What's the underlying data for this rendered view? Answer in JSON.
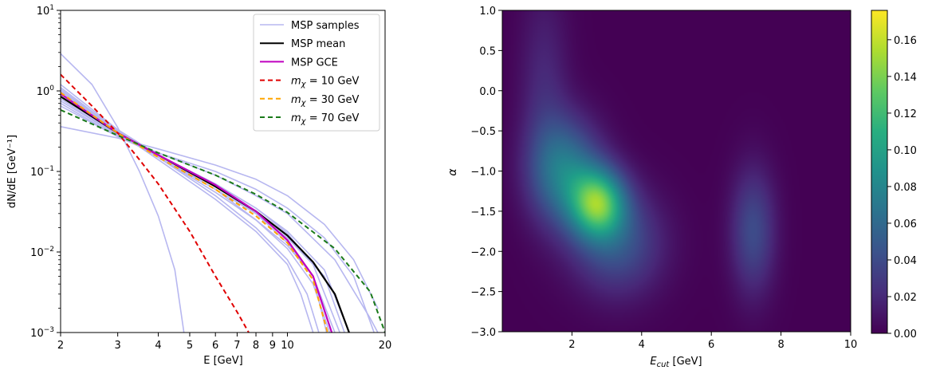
{
  "chart_data": [
    {
      "type": "line",
      "xlabel": "E [GeV]",
      "ylabel": "dN/dE [GeV⁻¹]",
      "xscale": "log",
      "yscale": "log",
      "xlim": [
        2,
        20
      ],
      "ylim": [
        0.001,
        10
      ],
      "xticks": [
        {
          "value": 2,
          "label": "2"
        },
        {
          "value": 3,
          "label": "3"
        },
        {
          "value": 4,
          "label": "4"
        },
        {
          "value": 5,
          "label": "5"
        },
        {
          "value": 6,
          "label": "6"
        },
        {
          "value": 7,
          "label": "7"
        },
        {
          "value": 8,
          "label": "8"
        },
        {
          "value": 9,
          "label": "9"
        },
        {
          "value": 10,
          "label": "10"
        },
        {
          "value": 20,
          "label": "20"
        }
      ],
      "yticks": [
        {
          "value": 0.001,
          "base": "10",
          "exp": "−3"
        },
        {
          "value": 0.01,
          "base": "10",
          "exp": "−2"
        },
        {
          "value": 0.1,
          "base": "10",
          "exp": "−1"
        },
        {
          "value": 1,
          "base": "10",
          "exp": "0"
        },
        {
          "value": 10,
          "base": "10",
          "exp": "1"
        }
      ],
      "legend_position": "top-right",
      "legend": [
        {
          "label": "MSP samples",
          "color": "#b7b7f0",
          "style": "solid"
        },
        {
          "label": "MSP mean",
          "color": "#000000",
          "style": "solid"
        },
        {
          "label": "MSP GCE",
          "color": "#bf00bf",
          "style": "solid"
        },
        {
          "label_prefix": "m",
          "label_sub": "χ",
          "label_suffix": " = 10 GeV",
          "color": "#e00000",
          "style": "dashed"
        },
        {
          "label_prefix": "m",
          "label_sub": "χ",
          "label_suffix": " = 30 GeV",
          "color": "#ffa500",
          "style": "dashed"
        },
        {
          "label_prefix": "m",
          "label_sub": "χ",
          "label_suffix": " = 70 GeV",
          "color": "#1a7a1a",
          "style": "dashed"
        }
      ],
      "series": [
        {
          "group": "MSP samples",
          "color": "#b7b7f0",
          "style": "solid",
          "points": [
            [
              2,
              0.36
            ],
            [
              3,
              0.26
            ],
            [
              4,
              0.19
            ],
            [
              6,
              0.12
            ],
            [
              8,
              0.08
            ],
            [
              10,
              0.05
            ],
            [
              13,
              0.022
            ],
            [
              16,
              0.008
            ],
            [
              19,
              0.002
            ]
          ]
        },
        {
          "group": "MSP samples",
          "color": "#b7b7f0",
          "style": "solid",
          "points": [
            [
              2,
              2.9
            ],
            [
              2.5,
              1.2
            ],
            [
              3,
              0.35
            ],
            [
              3.5,
              0.1
            ],
            [
              4,
              0.028
            ],
            [
              4.5,
              0.006
            ],
            [
              4.8,
              0.001
            ]
          ]
        },
        {
          "group": "MSP samples",
          "color": "#b7b7f0",
          "style": "solid",
          "points": [
            [
              2,
              1.2
            ],
            [
              3,
              0.33
            ],
            [
              4,
              0.16
            ],
            [
              6,
              0.06
            ],
            [
              8,
              0.025
            ],
            [
              10,
              0.011
            ],
            [
              12,
              0.004
            ],
            [
              13.5,
              0.001
            ]
          ]
        },
        {
          "group": "MSP samples",
          "color": "#b7b7f0",
          "style": "solid",
          "points": [
            [
              2,
              1.1
            ],
            [
              3,
              0.32
            ],
            [
              4,
              0.15
            ],
            [
              6,
              0.05
            ],
            [
              8,
              0.02
            ],
            [
              10,
              0.008
            ],
            [
              11.5,
              0.003
            ],
            [
              12.5,
              0.001
            ]
          ]
        },
        {
          "group": "MSP samples",
          "color": "#b7b7f0",
          "style": "solid",
          "points": [
            [
              2,
              1.0
            ],
            [
              3,
              0.31
            ],
            [
              4,
              0.15
            ],
            [
              6,
              0.055
            ],
            [
              8,
              0.025
            ],
            [
              10,
              0.012
            ],
            [
              12,
              0.005
            ],
            [
              14,
              0.001
            ]
          ]
        },
        {
          "group": "MSP samples",
          "color": "#b7b7f0",
          "style": "solid",
          "points": [
            [
              2,
              0.95
            ],
            [
              3,
              0.3
            ],
            [
              4,
              0.15
            ],
            [
              6,
              0.06
            ],
            [
              8,
              0.03
            ],
            [
              10,
              0.015
            ],
            [
              13,
              0.005
            ],
            [
              15,
              0.001
            ]
          ]
        },
        {
          "group": "MSP samples",
          "color": "#b7b7f0",
          "style": "solid",
          "points": [
            [
              2,
              0.85
            ],
            [
              3,
              0.29
            ],
            [
              4,
              0.16
            ],
            [
              6,
              0.07
            ],
            [
              8,
              0.035
            ],
            [
              10,
              0.018
            ],
            [
              13,
              0.006
            ],
            [
              15.5,
              0.001
            ]
          ]
        },
        {
          "group": "MSP samples",
          "color": "#b7b7f0",
          "style": "solid",
          "points": [
            [
              2,
              0.8
            ],
            [
              3,
              0.28
            ],
            [
              4,
              0.16
            ],
            [
              6,
              0.065
            ],
            [
              8,
              0.03
            ],
            [
              10,
              0.013
            ],
            [
              12,
              0.005
            ],
            [
              13.2,
              0.001
            ]
          ]
        },
        {
          "group": "MSP samples",
          "color": "#b7b7f0",
          "style": "solid",
          "points": [
            [
              2,
              0.75
            ],
            [
              3,
              0.28
            ],
            [
              4,
              0.17
            ],
            [
              6,
              0.09
            ],
            [
              8,
              0.05
            ],
            [
              10,
              0.03
            ],
            [
              14,
              0.008
            ],
            [
              18,
              0.0015
            ],
            [
              19,
              0.001
            ]
          ]
        },
        {
          "group": "MSP samples",
          "color": "#b7b7f0",
          "style": "solid",
          "points": [
            [
              2,
              0.7
            ],
            [
              3,
              0.27
            ],
            [
              4,
              0.16
            ],
            [
              6,
              0.07
            ],
            [
              8,
              0.035
            ],
            [
              10,
              0.017
            ],
            [
              12,
              0.007
            ],
            [
              14.5,
              0.001
            ]
          ]
        },
        {
          "group": "MSP samples",
          "color": "#b7b7f0",
          "style": "solid",
          "points": [
            [
              2,
              0.65
            ],
            [
              3,
              0.27
            ],
            [
              4,
              0.17
            ],
            [
              6,
              0.1
            ],
            [
              8,
              0.06
            ],
            [
              10,
              0.035
            ],
            [
              13,
              0.015
            ],
            [
              16,
              0.005
            ],
            [
              18.5,
              0.001
            ]
          ]
        },
        {
          "group": "MSP samples",
          "color": "#b7b7f0",
          "style": "solid",
          "points": [
            [
              2,
              1.05
            ],
            [
              3,
              0.31
            ],
            [
              4,
              0.14
            ],
            [
              6,
              0.045
            ],
            [
              8,
              0.018
            ],
            [
              10,
              0.007
            ],
            [
              11,
              0.003
            ],
            [
              12,
              0.001
            ]
          ]
        },
        {
          "name": "MSP mean",
          "color": "#000000",
          "style": "solid",
          "width": 2.2,
          "points": [
            [
              2,
              0.85
            ],
            [
              3,
              0.3
            ],
            [
              4,
              0.16
            ],
            [
              6,
              0.065
            ],
            [
              8,
              0.032
            ],
            [
              10,
              0.016
            ],
            [
              12,
              0.0075
            ],
            [
              14,
              0.003
            ],
            [
              15.5,
              0.001
            ]
          ]
        },
        {
          "name": "MSP GCE",
          "color": "#bf00bf",
          "style": "solid",
          "width": 2.2,
          "points": [
            [
              2,
              0.92
            ],
            [
              3,
              0.3
            ],
            [
              4,
              0.16
            ],
            [
              6,
              0.068
            ],
            [
              8,
              0.032
            ],
            [
              10,
              0.014
            ],
            [
              12,
              0.005
            ],
            [
              13.7,
              0.001
            ]
          ]
        },
        {
          "name": "mχ = 10 GeV",
          "color": "#e00000",
          "style": "dashed",
          "width": 2,
          "points": [
            [
              2,
              1.6
            ],
            [
              2.5,
              0.65
            ],
            [
              3,
              0.3
            ],
            [
              3.5,
              0.14
            ],
            [
              4,
              0.07
            ],
            [
              5,
              0.018
            ],
            [
              6,
              0.005
            ],
            [
              7,
              0.0018
            ],
            [
              7.6,
              0.001
            ]
          ]
        },
        {
          "name": "mχ = 30 GeV",
          "color": "#ffa500",
          "style": "dashed",
          "width": 2,
          "points": [
            [
              2,
              0.95
            ],
            [
              3,
              0.3
            ],
            [
              4,
              0.15
            ],
            [
              6,
              0.06
            ],
            [
              8,
              0.028
            ],
            [
              10,
              0.013
            ],
            [
              12,
              0.0045
            ],
            [
              13.3,
              0.001
            ]
          ]
        },
        {
          "name": "mχ = 70 GeV",
          "color": "#1a7a1a",
          "style": "dashed",
          "width": 2,
          "points": [
            [
              2,
              0.58
            ],
            [
              3,
              0.28
            ],
            [
              4,
              0.17
            ],
            [
              6,
              0.09
            ],
            [
              8,
              0.052
            ],
            [
              10,
              0.031
            ],
            [
              14,
              0.011
            ],
            [
              18,
              0.0032
            ],
            [
              20,
              0.001
            ]
          ]
        }
      ]
    },
    {
      "type": "heatmap",
      "xlabel": "E_cut [GeV]",
      "xlabel_main": "E",
      "xlabel_sub": "cut",
      "xlabel_unit": " [GeV]",
      "ylabel": "α",
      "xlim": [
        0,
        10
      ],
      "ylim": [
        -3.0,
        1.0
      ],
      "xticks": [
        {
          "value": 2,
          "label": "2"
        },
        {
          "value": 4,
          "label": "4"
        },
        {
          "value": 6,
          "label": "6"
        },
        {
          "value": 8,
          "label": "8"
        },
        {
          "value": 10,
          "label": "10"
        }
      ],
      "yticks": [
        {
          "value": 1.0,
          "label": "1.0"
        },
        {
          "value": 0.5,
          "label": "0.5"
        },
        {
          "value": 0.0,
          "label": "0.0"
        },
        {
          "value": -0.5,
          "label": "−0.5"
        },
        {
          "value": -1.0,
          "label": "−1.0"
        },
        {
          "value": -1.5,
          "label": "−1.5"
        },
        {
          "value": -2.0,
          "label": "−2.0"
        },
        {
          "value": -2.5,
          "label": "−2.5"
        },
        {
          "value": -3.0,
          "label": "−3.0"
        }
      ],
      "colormap": "viridis",
      "zlim": [
        0.0,
        0.176
      ],
      "colorbar_ticks": [
        {
          "value": 0.0,
          "label": "0.00"
        },
        {
          "value": 0.02,
          "label": "0.02"
        },
        {
          "value": 0.04,
          "label": "0.04"
        },
        {
          "value": 0.06,
          "label": "0.06"
        },
        {
          "value": 0.08,
          "label": "0.08"
        },
        {
          "value": 0.1,
          "label": "0.10"
        },
        {
          "value": 0.12,
          "label": "0.12"
        },
        {
          "value": 0.14,
          "label": "0.14"
        },
        {
          "value": 0.16,
          "label": "0.16"
        }
      ],
      "density_components": [
        {
          "x": 2.75,
          "y": -1.4,
          "sx": 0.55,
          "sy": 0.3,
          "amp": 0.115
        },
        {
          "x": 1.8,
          "y": -1.0,
          "sx": 0.7,
          "sy": 0.45,
          "amp": 0.07
        },
        {
          "x": 3.3,
          "y": -1.9,
          "sx": 0.9,
          "sy": 0.45,
          "amp": 0.045
        },
        {
          "x": 1.2,
          "y": 0.0,
          "sx": 0.5,
          "sy": 0.9,
          "amp": 0.02
        },
        {
          "x": 7.2,
          "y": -1.75,
          "sx": 0.45,
          "sy": 0.55,
          "amp": 0.04
        }
      ]
    }
  ]
}
